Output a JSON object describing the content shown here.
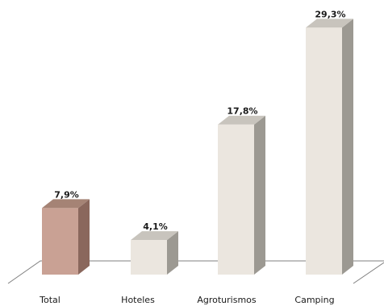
{
  "chart_data": {
    "type": "bar",
    "categories": [
      "Total",
      "Hoteles",
      "Agroturismos",
      "Camping"
    ],
    "values": [
      7.9,
      4.1,
      17.8,
      29.3
    ],
    "value_labels": [
      "7,9%",
      "4,1%",
      "17,8%",
      "29,3%"
    ],
    "title": "",
    "xlabel": "",
    "ylabel": "",
    "ylim": [
      0,
      30
    ],
    "grid": false,
    "legend": "none",
    "style": "3d-column",
    "colors": {
      "highlight_front": "#c9a194",
      "highlight_side": "#8a675c",
      "highlight_top": "#a58375",
      "normal_front": "#ebe6df",
      "normal_side": "#9c9992",
      "normal_top": "#c8c4bd",
      "floor_line": "#7f7f7f"
    },
    "highlight_index": 0
  }
}
